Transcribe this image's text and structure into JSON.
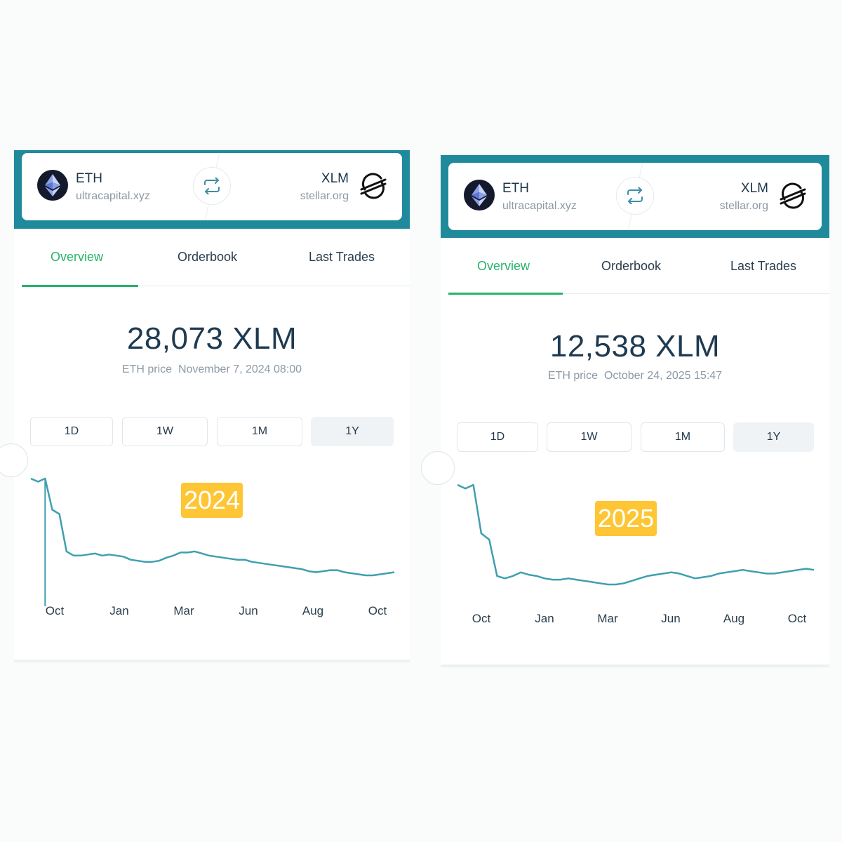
{
  "panels": [
    {
      "base": {
        "symbol": "ETH",
        "domain": "ultracapital.xyz"
      },
      "quote": {
        "symbol": "XLM",
        "domain": "stellar.org"
      },
      "tabs": [
        "Overview",
        "Orderbook",
        "Last Trades"
      ],
      "active_tab": "Overview",
      "price": "28,073 XLM",
      "price_label": "ETH price",
      "price_date": "November 7, 2024 08:00",
      "ranges": [
        "1D",
        "1W",
        "1M",
        "1Y"
      ],
      "active_range": "1Y",
      "year_badge": "2024"
    },
    {
      "base": {
        "symbol": "ETH",
        "domain": "ultracapital.xyz"
      },
      "quote": {
        "symbol": "XLM",
        "domain": "stellar.org"
      },
      "tabs": [
        "Overview",
        "Orderbook",
        "Last Trades"
      ],
      "active_tab": "Overview",
      "price": "12,538 XLM",
      "price_label": "ETH price",
      "price_date": "October 24, 2025 15:47",
      "ranges": [
        "1D",
        "1W",
        "1M",
        "1Y"
      ],
      "active_range": "1Y",
      "year_badge": "2025"
    }
  ],
  "colors": {
    "header": "#1f8a9b",
    "accent_green": "#26b36b",
    "line": "#3f9fb0",
    "badge": "#fec534"
  },
  "icons": {
    "base_logo": "ethereum-icon",
    "quote_logo": "stellar-icon",
    "swap": "swap-arrows-icon"
  },
  "chart_data": [
    {
      "type": "line",
      "x": [
        "Oct",
        "Jan",
        "Mar",
        "Jun",
        "Aug",
        "Oct"
      ],
      "series_points": [
        100,
        97,
        100,
        70,
        66,
        30,
        26,
        26,
        27,
        28,
        26,
        27,
        26,
        25,
        22,
        21,
        20,
        20,
        21,
        24,
        26,
        29,
        29,
        30,
        28,
        26,
        25,
        24,
        23,
        22,
        22,
        20,
        19,
        18,
        17,
        16,
        15,
        14,
        13,
        11,
        10,
        11,
        12,
        12,
        10,
        9,
        8,
        7,
        7,
        8,
        9,
        10
      ],
      "x_ticks": [
        "Oct",
        "Jan",
        "Mar",
        "Jun",
        "Aug",
        "Oct"
      ]
    },
    {
      "type": "line",
      "x": [
        "Oct",
        "Jan",
        "Mar",
        "Jun",
        "Aug",
        "Oct"
      ],
      "series_points": [
        100,
        97,
        100,
        60,
        55,
        25,
        23,
        25,
        28,
        26,
        25,
        23,
        22,
        22,
        23,
        22,
        21,
        20,
        19,
        18,
        18,
        19,
        21,
        23,
        25,
        26,
        27,
        28,
        27,
        25,
        23,
        24,
        25,
        27,
        28,
        29,
        30,
        29,
        28,
        27,
        27,
        28,
        29,
        30,
        31,
        30
      ],
      "x_ticks": [
        "Oct",
        "Jan",
        "Mar",
        "Jun",
        "Aug",
        "Oct"
      ]
    }
  ]
}
